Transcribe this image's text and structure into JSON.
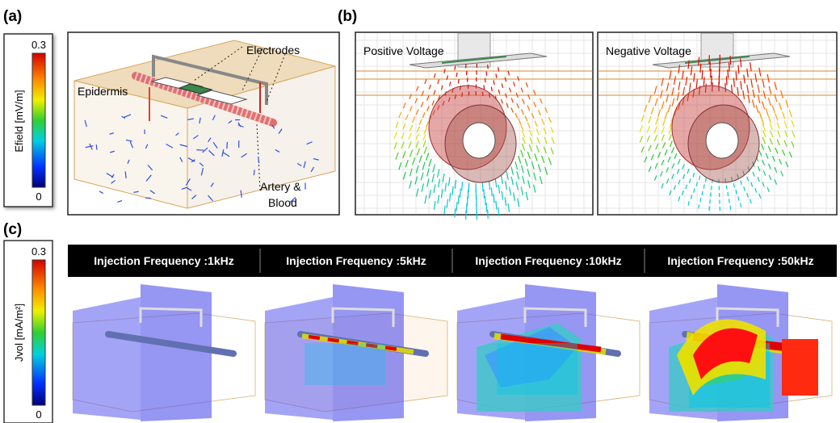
{
  "labels": {
    "a": "(a)",
    "b": "(b)",
    "c": "(c)"
  },
  "panel_a": {
    "colorbar": {
      "max": "0.3",
      "label": "Efield [mV/m]",
      "min": "0"
    },
    "annotations": {
      "electrodes": "Electrodes",
      "epidermis": "Epidermis",
      "artery": [
        "Artery &",
        "Blood"
      ]
    }
  },
  "panel_b": {
    "titles": [
      "Positive Voltage",
      "Negative Voltage"
    ]
  },
  "panel_c": {
    "colorbar": {
      "max": "0.3",
      "label": "Jvol [mA/m²]",
      "min": "0"
    },
    "headers": [
      "Injection Frequency :1kHz",
      "Injection Frequency :5kHz",
      "Injection Frequency :10kHz",
      "Injection Frequency :50kHz"
    ]
  }
}
